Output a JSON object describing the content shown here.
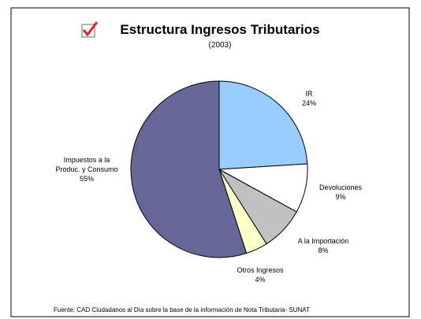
{
  "chart_data": {
    "type": "pie",
    "title": "Estructura Ingresos Tributarios",
    "subtitle": "(2003)",
    "categories": [
      "IR",
      "Devoluciones",
      "A la Importación",
      "Otros Ingresos",
      "Impuestos a la Produc. y Consumo"
    ],
    "values": [
      24,
      9,
      8,
      4,
      55
    ],
    "value_labels": [
      "24%",
      "9%",
      "8%",
      "4%",
      "55%"
    ],
    "colors": [
      "#99ccff",
      "#ffffff",
      "#c0c0c0",
      "#ffffcc",
      "#666699"
    ],
    "source": "Fuente: CAD Ciudadanos al Día sobre la base de la información de Nota Tributaria- SUNAT"
  }
}
